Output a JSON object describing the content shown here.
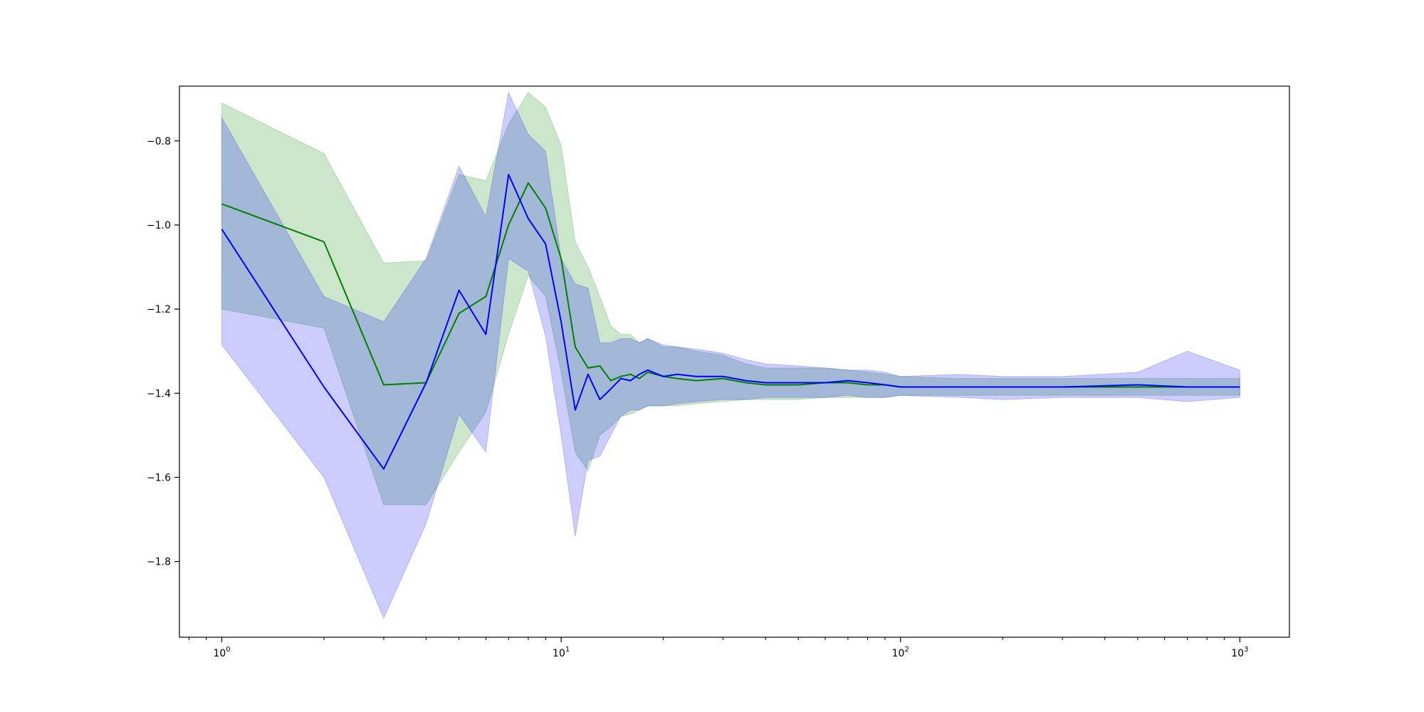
{
  "chart_data": {
    "type": "line",
    "title": "",
    "xlabel": "",
    "ylabel": "",
    "xscale": "log",
    "xlim": [
      0.75,
      1400
    ],
    "ylim": [
      -1.98,
      -0.67
    ],
    "grid": false,
    "legend": "none",
    "x_ticks": [
      {
        "value": 1,
        "base": "10",
        "exp": "0"
      },
      {
        "value": 10,
        "base": "10",
        "exp": "1"
      },
      {
        "value": 100,
        "base": "10",
        "exp": "2"
      },
      {
        "value": 1000,
        "base": "10",
        "exp": "3"
      }
    ],
    "y_ticks": [
      {
        "value": -0.8,
        "label": "−0.8"
      },
      {
        "value": -1.0,
        "label": "−1.0"
      },
      {
        "value": -1.2,
        "label": "−1.2"
      },
      {
        "value": -1.4,
        "label": "−1.4"
      },
      {
        "value": -1.6,
        "label": "−1.6"
      },
      {
        "value": -1.8,
        "label": "−1.8"
      }
    ],
    "series": [
      {
        "color": "#008000",
        "band_color": "#008000",
        "band_opacity": 0.2,
        "x": [
          1,
          2,
          3,
          4,
          5,
          6,
          7,
          8,
          9,
          10,
          11,
          12,
          13,
          14,
          15,
          16,
          17,
          18,
          20,
          22,
          25,
          30,
          35,
          40,
          50,
          60,
          70,
          80,
          90,
          100,
          150,
          200,
          300,
          500,
          700,
          1000
        ],
        "mean": [
          -0.95,
          -1.04,
          -1.38,
          -1.375,
          -1.21,
          -1.17,
          -1.0,
          -0.9,
          -0.96,
          -1.08,
          -1.29,
          -1.34,
          -1.335,
          -1.37,
          -1.36,
          -1.355,
          -1.365,
          -1.35,
          -1.36,
          -1.365,
          -1.37,
          -1.365,
          -1.375,
          -1.38,
          -1.38,
          -1.375,
          -1.375,
          -1.38,
          -1.38,
          -1.385,
          -1.385,
          -1.385,
          -1.385,
          -1.385,
          -1.385,
          -1.385
        ],
        "upper": [
          -0.71,
          -0.83,
          -1.09,
          -1.085,
          -0.88,
          -0.895,
          -0.76,
          -0.685,
          -0.72,
          -0.81,
          -1.04,
          -1.1,
          -1.17,
          -1.24,
          -1.26,
          -1.26,
          -1.28,
          -1.27,
          -1.29,
          -1.29,
          -1.3,
          -1.31,
          -1.33,
          -1.34,
          -1.34,
          -1.34,
          -1.345,
          -1.35,
          -1.355,
          -1.36,
          -1.365,
          -1.365,
          -1.365,
          -1.365,
          -1.365,
          -1.365
        ],
        "lower": [
          -1.2,
          -1.245,
          -1.665,
          -1.665,
          -1.54,
          -1.445,
          -1.26,
          -1.12,
          -1.17,
          -1.35,
          -1.54,
          -1.585,
          -1.5,
          -1.48,
          -1.455,
          -1.45,
          -1.44,
          -1.43,
          -1.43,
          -1.43,
          -1.425,
          -1.42,
          -1.415,
          -1.415,
          -1.415,
          -1.41,
          -1.41,
          -1.41,
          -1.41,
          -1.405,
          -1.405,
          -1.405,
          -1.405,
          -1.405,
          -1.405,
          -1.405
        ]
      },
      {
        "color": "#0000ff",
        "band_color": "#0000ff",
        "band_opacity": 0.2,
        "x": [
          1,
          2,
          3,
          4,
          5,
          6,
          7,
          8,
          9,
          10,
          11,
          12,
          13,
          14,
          15,
          16,
          17,
          18,
          20,
          22,
          25,
          30,
          35,
          40,
          50,
          60,
          70,
          80,
          90,
          100,
          150,
          200,
          300,
          500,
          700,
          1000
        ],
        "mean": [
          -1.01,
          -1.385,
          -1.58,
          -1.375,
          -1.155,
          -1.26,
          -0.88,
          -0.985,
          -1.045,
          -1.23,
          -1.44,
          -1.355,
          -1.415,
          -1.39,
          -1.365,
          -1.37,
          -1.355,
          -1.345,
          -1.36,
          -1.355,
          -1.36,
          -1.36,
          -1.37,
          -1.375,
          -1.375,
          -1.375,
          -1.37,
          -1.375,
          -1.38,
          -1.385,
          -1.385,
          -1.385,
          -1.385,
          -1.38,
          -1.385,
          -1.385
        ],
        "upper": [
          -0.745,
          -1.17,
          -1.23,
          -1.08,
          -0.86,
          -0.98,
          -0.685,
          -0.785,
          -0.825,
          -1.08,
          -1.14,
          -1.15,
          -1.28,
          -1.28,
          -1.27,
          -1.27,
          -1.28,
          -1.27,
          -1.285,
          -1.29,
          -1.295,
          -1.305,
          -1.32,
          -1.33,
          -1.335,
          -1.34,
          -1.345,
          -1.345,
          -1.35,
          -1.36,
          -1.355,
          -1.36,
          -1.36,
          -1.35,
          -1.3,
          -1.345
        ],
        "lower": [
          -1.285,
          -1.6,
          -1.935,
          -1.71,
          -1.45,
          -1.54,
          -1.08,
          -1.11,
          -1.265,
          -1.5,
          -1.74,
          -1.56,
          -1.55,
          -1.5,
          -1.455,
          -1.44,
          -1.44,
          -1.43,
          -1.43,
          -1.425,
          -1.42,
          -1.415,
          -1.415,
          -1.41,
          -1.41,
          -1.41,
          -1.405,
          -1.41,
          -1.41,
          -1.405,
          -1.41,
          -1.415,
          -1.41,
          -1.41,
          -1.42,
          -1.41
        ]
      }
    ]
  }
}
